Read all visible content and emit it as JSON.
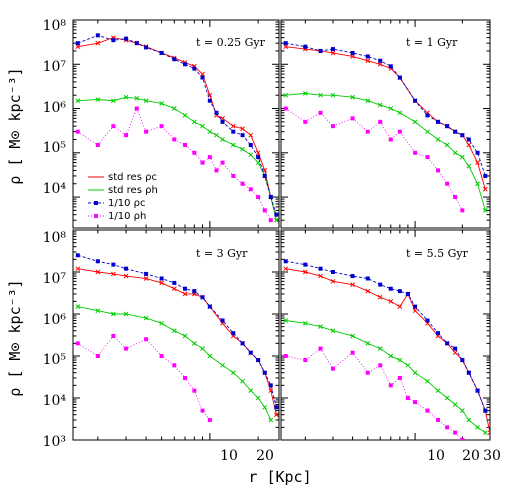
{
  "legend": [
    {
      "label": "std res ρc"
    },
    {
      "label": "std res ρh"
    },
    {
      "label": "1/10 ρc"
    },
    {
      "label": "1/10 ρh"
    }
  ],
  "axes": {
    "xlabel": "r  [Kpc]",
    "ylabel": "ρ  [ M⊙  kpc⁻³]",
    "ytick_labels_top": [
      "10⁸",
      "10⁷",
      "10⁶",
      "10⁵",
      "10⁴"
    ],
    "ytick_labels_bottom": [
      "10⁸",
      "10⁷",
      "10⁶",
      "10⁵",
      "10⁴",
      "10³"
    ],
    "xtick_labels_left": [
      "10",
      "20"
    ],
    "xtick_labels_right": [
      "10",
      "20",
      "30"
    ]
  },
  "chart_data": [
    {
      "type": "line",
      "title": "t = 0.25 Gyr",
      "xscale": "log",
      "yscale": "log",
      "xlim": [
        1.4,
        27
      ],
      "ylim": [
        2000,
        100000000
      ],
      "series": [
        {
          "name": "std res ρc",
          "color": "#ff0000",
          "marker": "cross",
          "x": [
            1.5,
            2,
            2.5,
            3,
            3.5,
            4,
            5,
            6,
            7,
            8,
            9,
            10,
            11,
            12,
            14,
            16,
            18,
            20,
            22,
            24,
            26
          ],
          "y": [
            25000000,
            30000000,
            40000000,
            35000000,
            30000000,
            25000000,
            18000000,
            14000000,
            11000000,
            9000000,
            6000000,
            2000000,
            700000,
            600000,
            400000,
            350000,
            250000,
            100000,
            40000,
            10000,
            3000
          ]
        },
        {
          "name": "std res ρh",
          "color": "#00cc00",
          "marker": "cross",
          "x": [
            1.5,
            2,
            2.5,
            3,
            3.5,
            4,
            5,
            6,
            7,
            8,
            9,
            10,
            11,
            12,
            14,
            16,
            18,
            20,
            22,
            24,
            26
          ],
          "y": [
            1500000,
            1600000,
            1500000,
            1800000,
            1700000,
            1500000,
            1300000,
            1000000,
            700000,
            500000,
            400000,
            300000,
            250000,
            200000,
            150000,
            120000,
            90000,
            60000,
            30000,
            10000,
            3000
          ]
        },
        {
          "name": "1/10 ρc",
          "color": "#0000cc",
          "marker": "square",
          "x": [
            1.5,
            2,
            2.5,
            3,
            3.5,
            4,
            5,
            6,
            7,
            8,
            9,
            10,
            11,
            12,
            14,
            16,
            18,
            20,
            22,
            24,
            26
          ],
          "y": [
            30000000,
            45000000,
            35000000,
            38000000,
            30000000,
            24000000,
            18000000,
            13000000,
            10000000,
            8000000,
            5000000,
            1500000,
            800000,
            500000,
            300000,
            250000,
            150000,
            80000,
            30000,
            10000,
            4000
          ]
        },
        {
          "name": "1/10 ρh",
          "color": "#ff00ff",
          "marker": "square",
          "x": [
            1.5,
            2,
            2.5,
            3,
            3.5,
            4,
            5,
            6,
            7,
            8,
            9,
            10,
            11,
            12,
            14,
            16,
            18,
            20,
            22,
            24
          ],
          "y": [
            300000,
            150000,
            400000,
            250000,
            1000000,
            300000,
            400000,
            200000,
            150000,
            100000,
            60000,
            80000,
            40000,
            60000,
            30000,
            20000,
            15000,
            10000,
            5000,
            3000
          ]
        }
      ]
    },
    {
      "type": "line",
      "title": "t = 1 Gyr",
      "xscale": "log",
      "yscale": "log",
      "xlim": [
        1.4,
        30
      ],
      "ylim": [
        2000,
        100000000
      ],
      "series": [
        {
          "name": "std res ρc",
          "color": "#ff0000",
          "marker": "cross",
          "x": [
            1.5,
            2,
            2.5,
            3,
            4,
            5,
            6,
            7,
            8,
            10,
            12,
            14,
            16,
            18,
            20,
            22,
            25,
            28
          ],
          "y": [
            25000000,
            22000000,
            20000000,
            18000000,
            15000000,
            12000000,
            10000000,
            8000000,
            5000000,
            1500000,
            800000,
            500000,
            400000,
            300000,
            250000,
            150000,
            60000,
            15000
          ]
        },
        {
          "name": "std res ρh",
          "color": "#00cc00",
          "marker": "cross",
          "x": [
            1.5,
            2,
            2.5,
            3,
            4,
            5,
            6,
            7,
            8,
            10,
            12,
            14,
            16,
            18,
            20,
            22,
            25,
            28
          ],
          "y": [
            2000000,
            2200000,
            2000000,
            2000000,
            1800000,
            1500000,
            1200000,
            1000000,
            800000,
            500000,
            300000,
            200000,
            150000,
            100000,
            80000,
            50000,
            20000,
            5000
          ]
        },
        {
          "name": "1/10 ρc",
          "color": "#0000cc",
          "marker": "square",
          "x": [
            1.5,
            2,
            2.5,
            3,
            4,
            5,
            6,
            7,
            8,
            10,
            12,
            14,
            16,
            18,
            20,
            22,
            25,
            28
          ],
          "y": [
            30000000,
            25000000,
            20000000,
            22000000,
            18000000,
            15000000,
            12000000,
            9000000,
            5000000,
            1500000,
            700000,
            500000,
            400000,
            300000,
            250000,
            200000,
            100000,
            30000
          ]
        },
        {
          "name": "1/10 ρh",
          "color": "#ff00ff",
          "marker": "square",
          "x": [
            1.5,
            2,
            2.5,
            3,
            4,
            5,
            6,
            7,
            8,
            10,
            12,
            14,
            16,
            18,
            20
          ],
          "y": [
            1000000,
            500000,
            800000,
            400000,
            600000,
            300000,
            500000,
            200000,
            300000,
            100000,
            80000,
            40000,
            20000,
            10000,
            5000
          ]
        }
      ]
    },
    {
      "type": "line",
      "title": "t = 3 Gyr",
      "xscale": "log",
      "yscale": "log",
      "xlim": [
        1.4,
        27
      ],
      "ylim": [
        1000,
        100000000
      ],
      "series": [
        {
          "name": "std res ρc",
          "color": "#ff0000",
          "marker": "cross",
          "x": [
            1.5,
            2,
            2.5,
            3,
            4,
            5,
            6,
            7,
            8,
            9,
            10,
            12,
            14,
            16,
            18,
            20,
            22,
            24,
            26
          ],
          "y": [
            12000000,
            10000000,
            9000000,
            8000000,
            7000000,
            5500000,
            4000000,
            3000000,
            3000000,
            2500000,
            1500000,
            600000,
            300000,
            200000,
            120000,
            80000,
            40000,
            15000,
            4000
          ]
        },
        {
          "name": "std res ρh",
          "color": "#00cc00",
          "marker": "cross",
          "x": [
            1.5,
            2,
            2.5,
            3,
            4,
            5,
            6,
            7,
            8,
            9,
            10,
            12,
            14,
            16,
            18,
            20,
            22,
            24
          ],
          "y": [
            1500000,
            1200000,
            1000000,
            1000000,
            800000,
            600000,
            400000,
            300000,
            200000,
            150000,
            100000,
            60000,
            40000,
            25000,
            15000,
            10000,
            6000,
            3000
          ]
        },
        {
          "name": "1/10 ρc",
          "color": "#0000cc",
          "marker": "square",
          "x": [
            1.5,
            2,
            2.5,
            3,
            4,
            5,
            6,
            7,
            8,
            9,
            10,
            12,
            14,
            16,
            18,
            20,
            22,
            24,
            26
          ],
          "y": [
            25000000,
            18000000,
            15000000,
            12000000,
            9000000,
            7000000,
            5500000,
            4000000,
            3500000,
            2500000,
            1500000,
            700000,
            350000,
            200000,
            120000,
            80000,
            40000,
            20000,
            6000
          ]
        },
        {
          "name": "1/10 ρh",
          "color": "#ff00ff",
          "marker": "square",
          "x": [
            1.5,
            2,
            2.5,
            3,
            4,
            5,
            6,
            7,
            8,
            9,
            10
          ],
          "y": [
            200000,
            100000,
            300000,
            150000,
            250000,
            100000,
            60000,
            30000,
            15000,
            5000,
            3000
          ]
        }
      ]
    },
    {
      "type": "line",
      "title": "t = 5.5 Gyr",
      "xscale": "log",
      "yscale": "log",
      "xlim": [
        1.4,
        30
      ],
      "ylim": [
        1000,
        100000000
      ],
      "series": [
        {
          "name": "std res ρc",
          "color": "#ff0000",
          "marker": "cross",
          "x": [
            1.5,
            2,
            2.5,
            3,
            4,
            5,
            6,
            7,
            8,
            9,
            10,
            12,
            14,
            16,
            18,
            20,
            22,
            25,
            28,
            30
          ],
          "y": [
            12000000,
            10000000,
            8000000,
            6000000,
            5000000,
            3500000,
            2500000,
            2000000,
            1500000,
            3000000,
            1200000,
            600000,
            300000,
            200000,
            120000,
            80000,
            40000,
            15000,
            5000,
            1500
          ]
        },
        {
          "name": "std res ρh",
          "color": "#00cc00",
          "marker": "cross",
          "x": [
            1.5,
            2,
            2.5,
            3,
            4,
            5,
            6,
            7,
            8,
            9,
            10,
            12,
            14,
            16,
            18,
            20,
            22,
            25,
            28
          ],
          "y": [
            700000,
            600000,
            500000,
            400000,
            300000,
            200000,
            150000,
            100000,
            80000,
            60000,
            40000,
            25000,
            15000,
            10000,
            7000,
            5000,
            3000,
            2000,
            1500
          ]
        },
        {
          "name": "1/10 ρc",
          "color": "#0000cc",
          "marker": "square",
          "x": [
            1.5,
            2,
            2.5,
            3,
            4,
            5,
            6,
            7,
            8,
            9,
            10,
            12,
            14,
            16,
            18,
            20,
            22,
            25,
            28
          ],
          "y": [
            18000000,
            15000000,
            12000000,
            10000000,
            8000000,
            7000000,
            5000000,
            4000000,
            3500000,
            3000000,
            1500000,
            700000,
            350000,
            200000,
            150000,
            80000,
            40000,
            15000,
            5000
          ]
        },
        {
          "name": "1/10 ρh",
          "color": "#ff00ff",
          "marker": "square",
          "x": [
            1.5,
            2,
            2.5,
            3,
            4,
            5,
            6,
            7,
            8,
            9,
            10,
            12,
            14,
            16,
            18,
            20
          ],
          "y": [
            100000,
            80000,
            150000,
            50000,
            120000,
            40000,
            60000,
            20000,
            30000,
            10000,
            8000,
            5000,
            3000,
            2000,
            1500,
            1000
          ]
        }
      ]
    }
  ]
}
